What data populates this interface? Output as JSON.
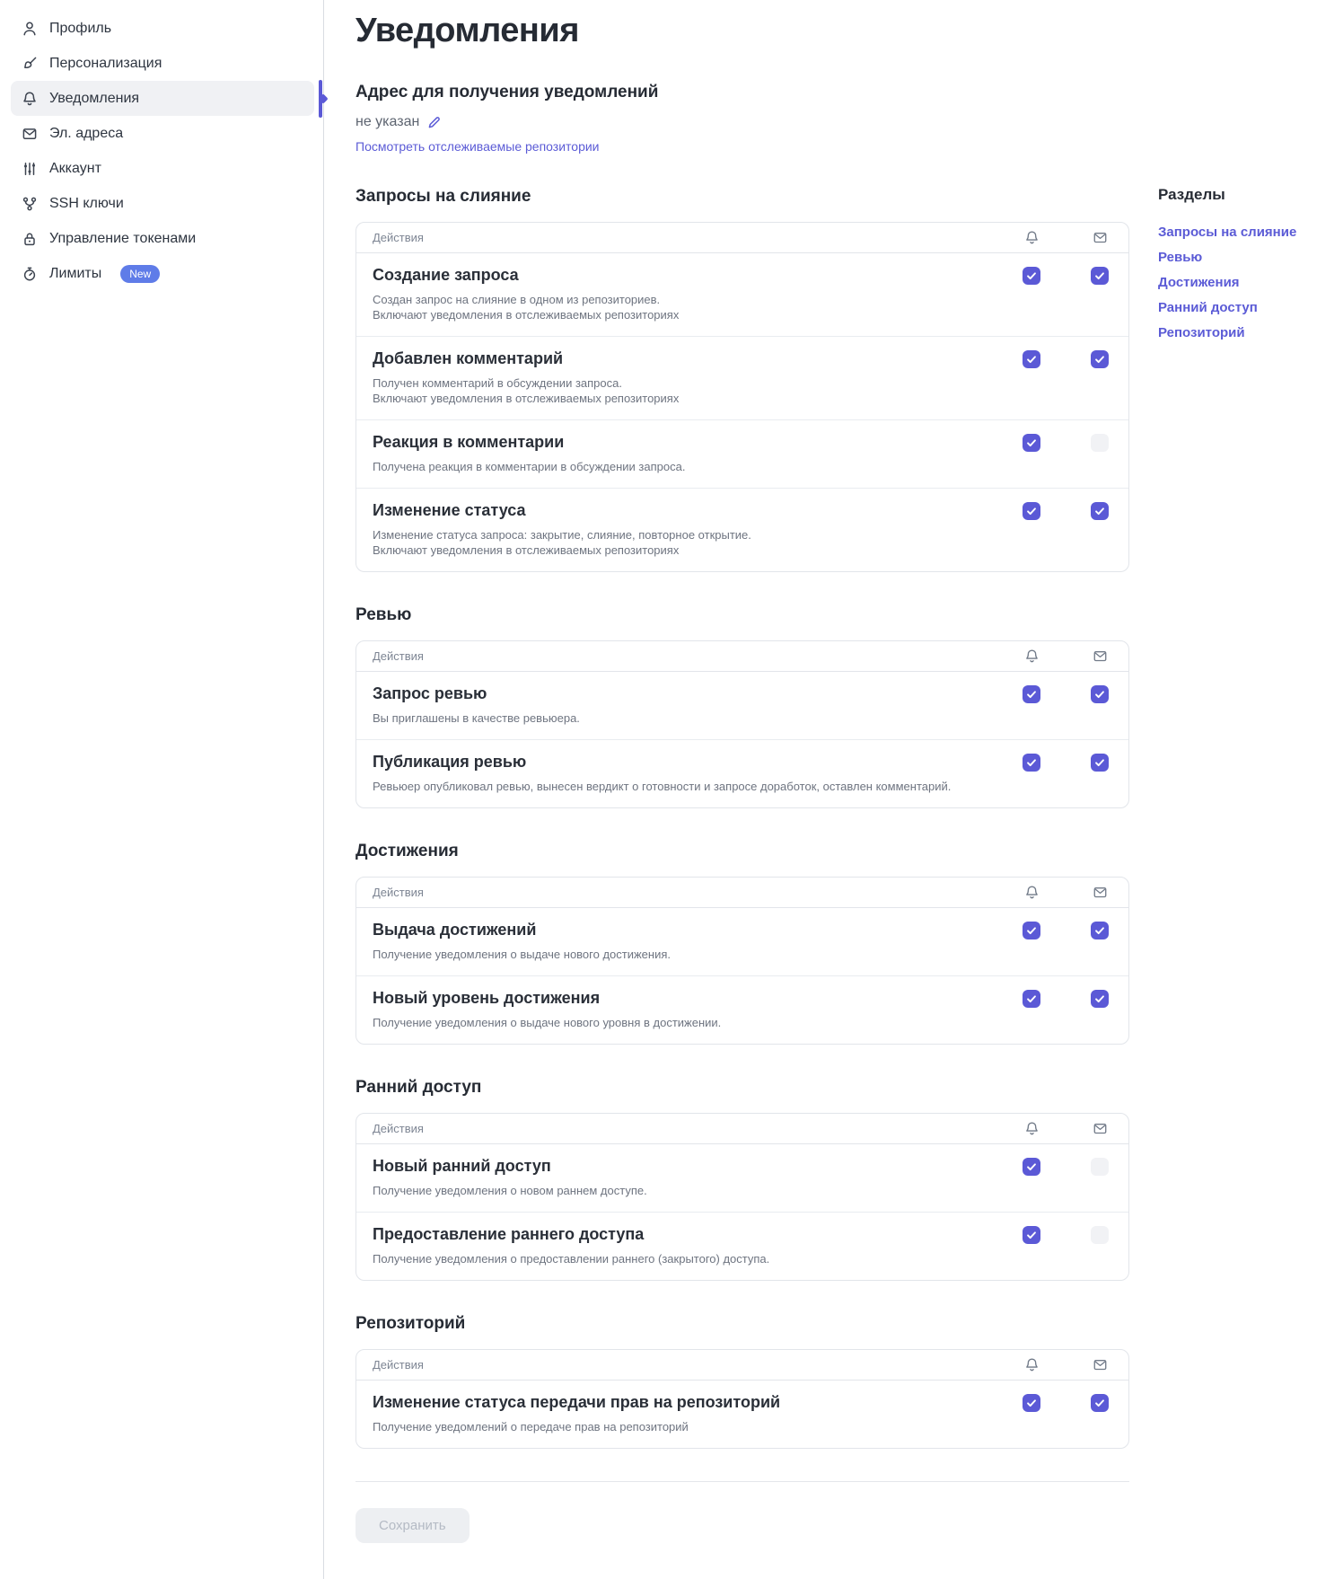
{
  "colors": {
    "accent": "#5b59d6",
    "link": "#5b5bd6",
    "badge": "#5f7ce8",
    "disabled_checkbox": "#f1f2f5",
    "disabled_button_bg": "#edeff2",
    "disabled_button_text": "#b4bac4"
  },
  "sidebar": {
    "items": [
      {
        "label": "Профиль",
        "icon": "user",
        "selected": false
      },
      {
        "label": "Персонализация",
        "icon": "brush",
        "selected": false
      },
      {
        "label": "Уведомления",
        "icon": "bell",
        "selected": true
      },
      {
        "label": "Эл. адреса",
        "icon": "mail",
        "selected": false
      },
      {
        "label": "Аккаунт",
        "icon": "sliders",
        "selected": false
      },
      {
        "label": "SSH ключи",
        "icon": "branch",
        "selected": false
      },
      {
        "label": "Управление токенами",
        "icon": "lock",
        "selected": false
      },
      {
        "label": "Лимиты",
        "icon": "timer",
        "selected": false,
        "badge": "New"
      }
    ]
  },
  "page": {
    "title": "Уведомления",
    "address_heading": "Адрес для получения уведомлений",
    "address_value": "не указан",
    "watched_link": "Посмотреть отслеживаемые репозитории"
  },
  "labels": {
    "actions": "Действия"
  },
  "sections": [
    {
      "heading": "Запросы на слияние",
      "rows": [
        {
          "title": "Создание запроса",
          "desc": [
            "Создан запрос на слияние в одном из репозиториев.",
            "Включают уведомления в отслеживаемых репозиториях"
          ],
          "bell": "checked",
          "mail": "checked"
        },
        {
          "title": "Добавлен комментарий",
          "desc": [
            "Получен комментарий в обсуждении запроса.",
            "Включают уведомления в отслеживаемых репозиториях"
          ],
          "bell": "checked",
          "mail": "checked"
        },
        {
          "title": "Реакция в комментарии",
          "desc": [
            "Получена реакция в комментарии в обсуждении запроса."
          ],
          "bell": "checked",
          "mail": "disabled"
        },
        {
          "title": "Изменение статуса",
          "desc": [
            "Изменение статуса запроса: закрытие, слияние, повторное открытие.",
            "Включают уведомления в отслеживаемых репозиториях"
          ],
          "bell": "checked",
          "mail": "checked"
        }
      ]
    },
    {
      "heading": "Ревью",
      "rows": [
        {
          "title": "Запрос ревью",
          "desc": [
            "Вы приглашены в качестве ревьюера."
          ],
          "bell": "checked",
          "mail": "checked"
        },
        {
          "title": "Публикация ревью",
          "desc": [
            "Ревьюер опубликовал ревью, вынесен вердикт о готовности и запросе доработок, оставлен комментарий."
          ],
          "bell": "checked",
          "mail": "checked"
        }
      ]
    },
    {
      "heading": "Достижения",
      "rows": [
        {
          "title": "Выдача достижений",
          "desc": [
            "Получение уведомления о выдаче нового достижения."
          ],
          "bell": "checked",
          "mail": "checked"
        },
        {
          "title": "Новый уровень достижения",
          "desc": [
            "Получение уведомления о выдаче нового уровня в достижении."
          ],
          "bell": "checked",
          "mail": "checked"
        }
      ]
    },
    {
      "heading": "Ранний доступ",
      "rows": [
        {
          "title": "Новый ранний доступ",
          "desc": [
            "Получение уведомления о новом раннем доступе."
          ],
          "bell": "checked",
          "mail": "disabled"
        },
        {
          "title": "Предоставление раннего доступа",
          "desc": [
            "Получение уведомления о предоставлении раннего (закрытого) доступа."
          ],
          "bell": "checked",
          "mail": "disabled"
        }
      ]
    },
    {
      "heading": "Репозиторий",
      "rows": [
        {
          "title": "Изменение статуса передачи прав на репозиторий",
          "desc": [
            "Получение уведомлений о передаче прав на репозиторий"
          ],
          "bell": "checked",
          "mail": "checked"
        }
      ]
    }
  ],
  "toc": {
    "heading": "Разделы",
    "links": [
      "Запросы на слияние",
      "Ревью",
      "Достижения",
      "Ранний доступ",
      "Репозиторий"
    ]
  },
  "footer": {
    "save_label": "Сохранить"
  }
}
